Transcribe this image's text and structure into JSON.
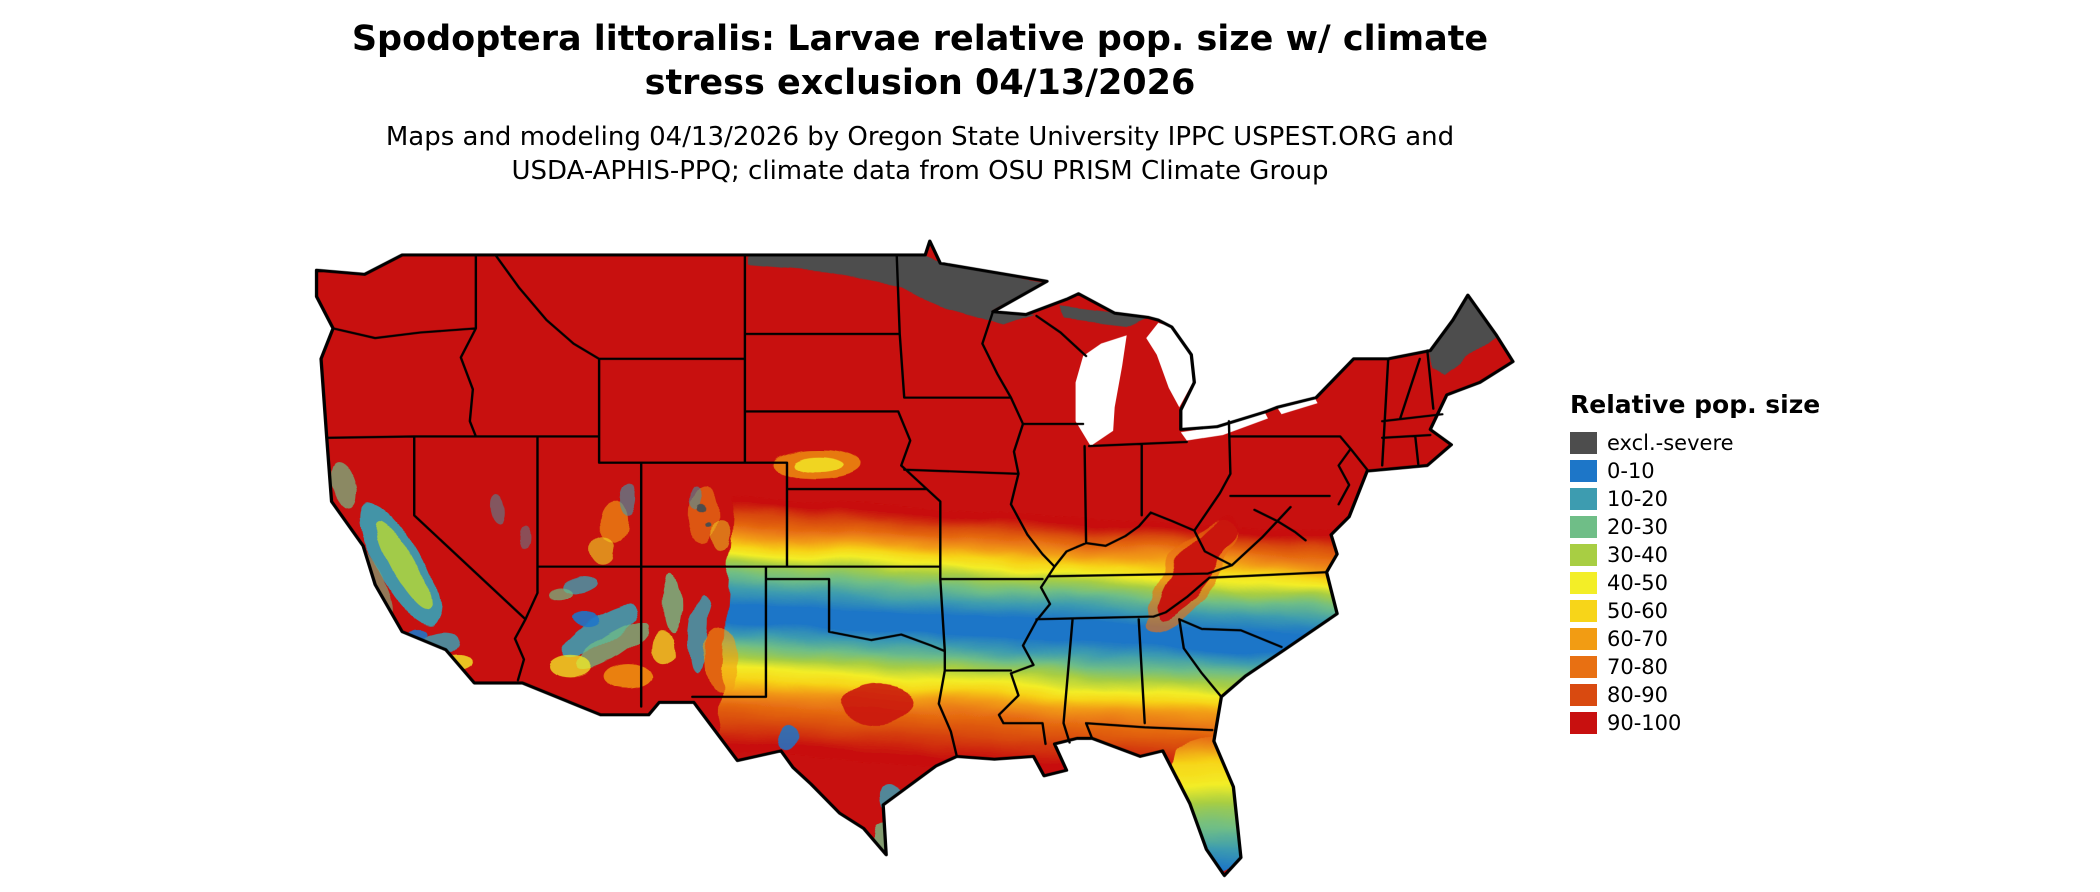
{
  "title": {
    "line1": "Spodoptera littoralis: Larvae relative pop. size w/ climate",
    "line2": "stress exclusion 04/13/2026"
  },
  "subtitle": {
    "line1": "Maps and modeling 04/13/2026 by Oregon State University IPPC USPEST.ORG and",
    "line2": "USDA-APHIS-PPQ; climate data from OSU PRISM Climate Group"
  },
  "legend": {
    "title": "Relative pop. size",
    "items": [
      {
        "label": "excl.-severe",
        "color": "#4d4d4d"
      },
      {
        "label": "0-10",
        "color": "#1d76c8"
      },
      {
        "label": "10-20",
        "color": "#3d9cb0"
      },
      {
        "label": "20-30",
        "color": "#6fbe87"
      },
      {
        "label": "30-40",
        "color": "#a8ce43"
      },
      {
        "label": "40-50",
        "color": "#f3ee27"
      },
      {
        "label": "50-60",
        "color": "#f7d519"
      },
      {
        "label": "60-70",
        "color": "#f29c13"
      },
      {
        "label": "70-80",
        "color": "#e87012"
      },
      {
        "label": "80-90",
        "color": "#d94a10"
      },
      {
        "label": "90-100",
        "color": "#c8100f"
      }
    ]
  },
  "map": {
    "region": "Continental United States",
    "style": "choropleth raster with black state boundaries on white background",
    "dominant_class": "90-100",
    "notes": [
      "Most of the northern and western US is shaded 90-100 (red)",
      "excl.-severe (gray) along the Canada border over North Dakota, Minnesota, the upper Great Lakes and northern Maine",
      "Banded transition across the mid-country: orange and yellow over Kansas/Missouri/Kentucky/Virginia",
      "Blue-teal low belt across northern Texas, Oklahoma, Arkansas, Tennessee, northern Alabama/Georgia and the Carolinas",
      "Warm colors return across south Texas, the Gulf Coast and northern Florida",
      "Florida peninsula grades from orange in the north to teal-blue at the tip",
      "Mottled mountain and valley detail across California, the Great Basin, Arizona and New Mexico",
      "Red tongue extends southwest along the Appalachians"
    ]
  }
}
